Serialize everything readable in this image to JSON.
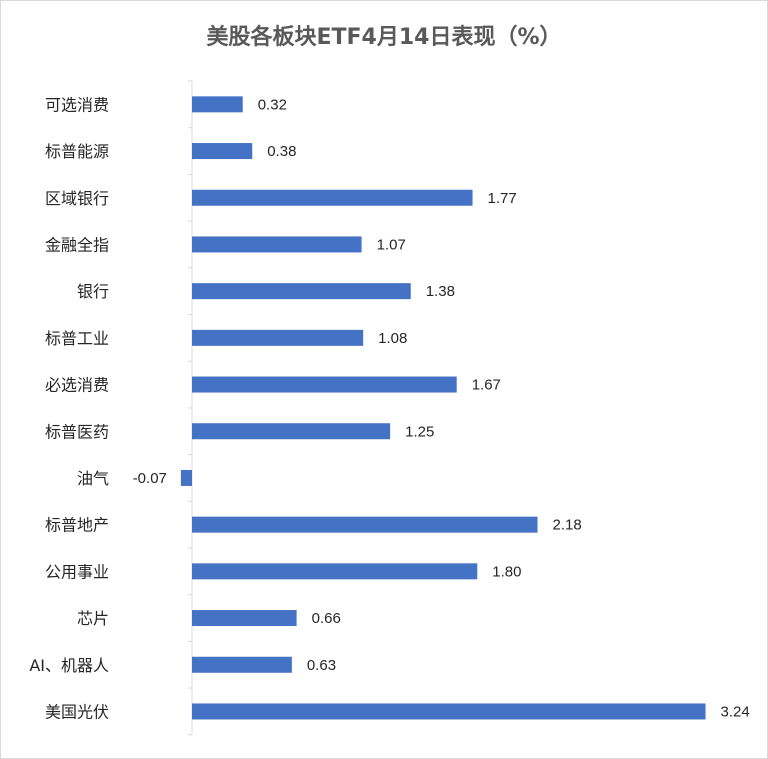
{
  "chart_data": {
    "type": "bar",
    "orientation": "horizontal",
    "title": "美股各板块ETF4月14日表现（%）",
    "xlabel": "",
    "ylabel": "",
    "bar_color": "#4472C4",
    "categories": [
      "可选消费",
      "标普能源",
      "区域银行",
      "金融全指",
      "银行",
      "标普工业",
      "必选消费",
      "标普医药",
      "油气",
      "标普地产",
      "公用事业",
      "芯片",
      "AI、机器人",
      "美国光伏"
    ],
    "values": [
      0.32,
      0.38,
      1.77,
      1.07,
      1.38,
      1.08,
      1.67,
      1.25,
      -0.07,
      2.18,
      1.8,
      0.66,
      0.63,
      3.24
    ],
    "value_labels": [
      "0.32",
      "0.38",
      "1.77",
      "1.07",
      "1.38",
      "1.08",
      "1.67",
      "1.25",
      "-0.07",
      "2.18",
      "1.80",
      "0.66",
      "0.63",
      "3.24"
    ],
    "grid": false,
    "legend": "none"
  }
}
